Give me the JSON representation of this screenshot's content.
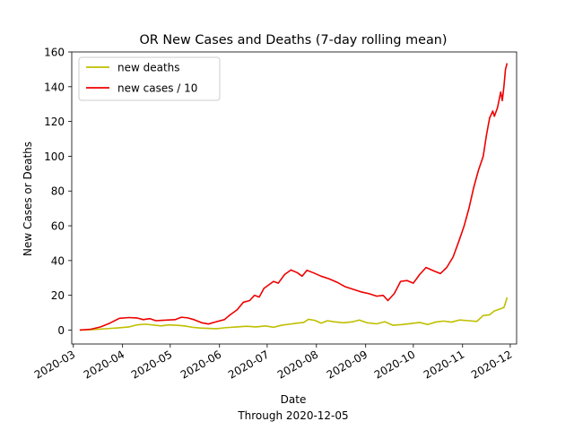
{
  "chart_data": {
    "type": "line",
    "title": "OR New Cases and Deaths (7-day rolling mean)",
    "xlabel": "Date",
    "xlabel_sub": "Through 2020-12-05",
    "ylabel": "New Cases or Deaths",
    "xlim": [
      "2020-02-29",
      "2020-12-05"
    ],
    "ylim": [
      -8,
      160
    ],
    "x_ticks": [
      "2020-03",
      "2020-04",
      "2020-05",
      "2020-06",
      "2020-07",
      "2020-08",
      "2020-09",
      "2020-10",
      "2020-11",
      "2020-12"
    ],
    "y_ticks": [
      0,
      20,
      40,
      60,
      80,
      100,
      120,
      140,
      160
    ],
    "grid": false,
    "legend_position": "upper-left",
    "series": [
      {
        "name": "new deaths",
        "color": "#bfbf00",
        "points": [
          [
            "2020-03-05",
            0
          ],
          [
            "2020-03-12",
            0.2
          ],
          [
            "2020-03-20",
            0.7
          ],
          [
            "2020-03-28",
            1.2
          ],
          [
            "2020-04-05",
            1.8
          ],
          [
            "2020-04-10",
            3.0
          ],
          [
            "2020-04-15",
            3.4
          ],
          [
            "2020-04-20",
            3.0
          ],
          [
            "2020-04-25",
            2.4
          ],
          [
            "2020-04-30",
            3.0
          ],
          [
            "2020-05-05",
            2.8
          ],
          [
            "2020-05-10",
            2.4
          ],
          [
            "2020-05-15",
            1.6
          ],
          [
            "2020-05-20",
            1.2
          ],
          [
            "2020-05-25",
            1.0
          ],
          [
            "2020-05-30",
            0.8
          ],
          [
            "2020-06-05",
            1.4
          ],
          [
            "2020-06-12",
            1.8
          ],
          [
            "2020-06-18",
            2.2
          ],
          [
            "2020-06-24",
            1.8
          ],
          [
            "2020-06-30",
            2.4
          ],
          [
            "2020-07-05",
            1.6
          ],
          [
            "2020-07-10",
            2.8
          ],
          [
            "2020-07-15",
            3.4
          ],
          [
            "2020-07-20",
            4.0
          ],
          [
            "2020-07-24",
            4.4
          ],
          [
            "2020-07-27",
            6.2
          ],
          [
            "2020-07-31",
            5.6
          ],
          [
            "2020-08-04",
            4.0
          ],
          [
            "2020-08-08",
            5.4
          ],
          [
            "2020-08-12",
            4.8
          ],
          [
            "2020-08-18",
            4.2
          ],
          [
            "2020-08-24",
            4.8
          ],
          [
            "2020-08-28",
            5.8
          ],
          [
            "2020-09-02",
            4.2
          ],
          [
            "2020-09-08",
            3.6
          ],
          [
            "2020-09-13",
            4.8
          ],
          [
            "2020-09-18",
            2.8
          ],
          [
            "2020-09-24",
            3.2
          ],
          [
            "2020-09-30",
            3.8
          ],
          [
            "2020-10-05",
            4.4
          ],
          [
            "2020-10-10",
            3.2
          ],
          [
            "2020-10-15",
            4.6
          ],
          [
            "2020-10-20",
            5.2
          ],
          [
            "2020-10-25",
            4.6
          ],
          [
            "2020-10-30",
            5.8
          ],
          [
            "2020-11-05",
            5.4
          ],
          [
            "2020-11-10",
            5.0
          ],
          [
            "2020-11-14",
            8.4
          ],
          [
            "2020-11-18",
            8.8
          ],
          [
            "2020-11-21",
            11.0
          ],
          [
            "2020-11-24",
            12.0
          ],
          [
            "2020-11-27",
            13.0
          ],
          [
            "2020-11-28",
            15.6
          ],
          [
            "2020-11-29",
            18.8
          ]
        ]
      },
      {
        "name": "new cases / 10",
        "color": "#ee0000",
        "points": [
          [
            "2020-03-05",
            0
          ],
          [
            "2020-03-12",
            0.5
          ],
          [
            "2020-03-18",
            1.8
          ],
          [
            "2020-03-24",
            4.0
          ],
          [
            "2020-03-30",
            6.8
          ],
          [
            "2020-04-05",
            7.2
          ],
          [
            "2020-04-10",
            7.0
          ],
          [
            "2020-04-14",
            6.0
          ],
          [
            "2020-04-18",
            6.6
          ],
          [
            "2020-04-22",
            5.4
          ],
          [
            "2020-04-26",
            5.6
          ],
          [
            "2020-04-30",
            5.8
          ],
          [
            "2020-05-04",
            6.0
          ],
          [
            "2020-05-08",
            7.4
          ],
          [
            "2020-05-12",
            7.0
          ],
          [
            "2020-05-16",
            6.0
          ],
          [
            "2020-05-21",
            4.2
          ],
          [
            "2020-05-25",
            3.5
          ],
          [
            "2020-05-30",
            4.8
          ],
          [
            "2020-06-04",
            6.0
          ],
          [
            "2020-06-08",
            9.0
          ],
          [
            "2020-06-12",
            11.6
          ],
          [
            "2020-06-16",
            16.0
          ],
          [
            "2020-06-20",
            17.0
          ],
          [
            "2020-06-23",
            20.0
          ],
          [
            "2020-06-26",
            19.0
          ],
          [
            "2020-06-29",
            24.0
          ],
          [
            "2020-07-02",
            26.0
          ],
          [
            "2020-07-05",
            28.0
          ],
          [
            "2020-07-08",
            27.0
          ],
          [
            "2020-07-12",
            32.0
          ],
          [
            "2020-07-16",
            34.6
          ],
          [
            "2020-07-20",
            33.0
          ],
          [
            "2020-07-23",
            31.0
          ],
          [
            "2020-07-26",
            34.4
          ],
          [
            "2020-07-30",
            33.0
          ],
          [
            "2020-08-04",
            31.0
          ],
          [
            "2020-08-09",
            29.5
          ],
          [
            "2020-08-14",
            27.5
          ],
          [
            "2020-08-19",
            25.0
          ],
          [
            "2020-08-24",
            23.5
          ],
          [
            "2020-08-29",
            22.0
          ],
          [
            "2020-09-03",
            21.0
          ],
          [
            "2020-09-08",
            19.5
          ],
          [
            "2020-09-12",
            20.0
          ],
          [
            "2020-09-15",
            17.0
          ],
          [
            "2020-09-19",
            21.0
          ],
          [
            "2020-09-23",
            28.0
          ],
          [
            "2020-09-27",
            28.5
          ],
          [
            "2020-10-01",
            27.0
          ],
          [
            "2020-10-05",
            32.0
          ],
          [
            "2020-10-09",
            36.0
          ],
          [
            "2020-10-14",
            34.0
          ],
          [
            "2020-10-18",
            32.5
          ],
          [
            "2020-10-22",
            36.0
          ],
          [
            "2020-10-26",
            42.0
          ],
          [
            "2020-10-30",
            52.0
          ],
          [
            "2020-11-02",
            60.0
          ],
          [
            "2020-11-05",
            70.0
          ],
          [
            "2020-11-08",
            82.0
          ],
          [
            "2020-11-11",
            92.0
          ],
          [
            "2020-11-14",
            100.0
          ],
          [
            "2020-11-16",
            112.0
          ],
          [
            "2020-11-18",
            122.0
          ],
          [
            "2020-11-20",
            126.0
          ],
          [
            "2020-11-21",
            123.0
          ],
          [
            "2020-11-23",
            128.0
          ],
          [
            "2020-11-25",
            137.0
          ],
          [
            "2020-11-26",
            132.0
          ],
          [
            "2020-11-27",
            140.0
          ],
          [
            "2020-11-28",
            150.0
          ],
          [
            "2020-11-29",
            153.5
          ]
        ]
      }
    ]
  }
}
